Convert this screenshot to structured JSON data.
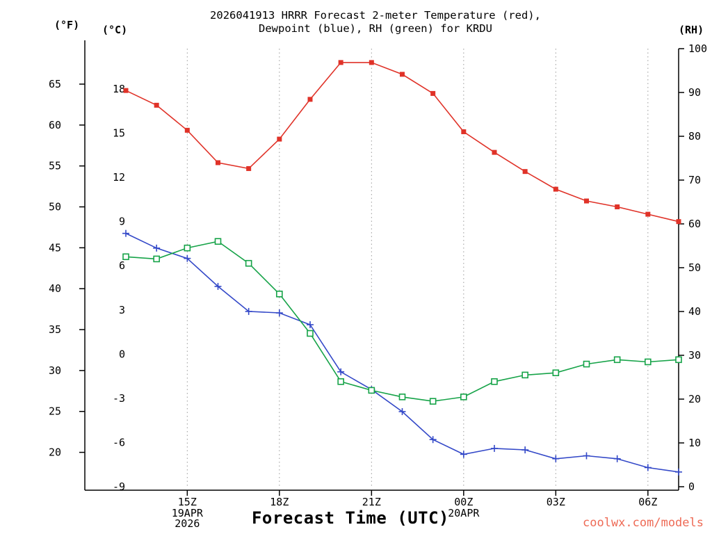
{
  "title": {
    "line1": "2026041913 HRRR Forecast 2-meter Temperature (red),",
    "line2": "Dewpoint (blue), RH (green) for KRDU"
  },
  "axes": {
    "left_outer_label": "(°F)",
    "left_inner_label": "(°C)",
    "right_label": "(RH)",
    "x_label": "Forecast Time (UTC)"
  },
  "watermark": "coolwx.com/models",
  "colors": {
    "temperature": "#e03228",
    "dewpoint": "#3348c8",
    "rh": "#16a348",
    "grid": "#999999",
    "axis": "#000000",
    "watermark": "#ee6a55"
  },
  "chart_data": {
    "type": "line",
    "title": "2026041913 HRRR Forecast 2-meter Temperature (red), Dewpoint (blue), RH (green) for KRDU",
    "station": "KRDU",
    "model_run": "2026041913",
    "xlabel": "Forecast Time (UTC)",
    "x_hours": [
      13,
      14,
      15,
      16,
      17,
      18,
      19,
      20,
      21,
      22,
      23,
      24,
      25,
      26,
      27,
      28,
      29,
      30,
      31
    ],
    "x_tick_hours": [
      15,
      18,
      21,
      24,
      27,
      30
    ],
    "x_tick_labels": [
      "15Z",
      "18Z",
      "21Z",
      "00Z",
      "03Z",
      "06Z"
    ],
    "x_date_labels": [
      {
        "hour": 15,
        "lines": [
          "19APR",
          "2026"
        ]
      },
      {
        "hour": 24,
        "lines": [
          "20APR"
        ]
      }
    ],
    "celsius_axis": {
      "min": -9,
      "max": 20.74,
      "ticks": [
        -9,
        -6,
        -3,
        0,
        3,
        6,
        9,
        12,
        15,
        18
      ]
    },
    "fahrenheit_ticks": [
      20,
      25,
      30,
      35,
      40,
      45,
      50,
      55,
      60,
      65
    ],
    "rh_axis": {
      "min": 0,
      "max": 100,
      "ticks": [
        0,
        10,
        20,
        30,
        40,
        50,
        60,
        70,
        80,
        90,
        100
      ]
    },
    "series": [
      {
        "key": "temperature",
        "name": "2-meter Temperature (°C)",
        "axis": "celsius",
        "marker": "filled-square",
        "values": [
          17.9,
          16.9,
          15.2,
          13.0,
          12.6,
          14.6,
          17.3,
          19.8,
          19.8,
          19.0,
          17.7,
          15.1,
          13.7,
          12.4,
          11.2,
          10.4,
          10.0,
          9.5,
          9.0
        ]
      },
      {
        "key": "dewpoint",
        "name": "Dewpoint (°C)",
        "axis": "celsius",
        "marker": "plus",
        "values": [
          8.2,
          7.2,
          6.5,
          4.6,
          2.9,
          2.8,
          2.0,
          -1.2,
          -2.4,
          -3.9,
          -5.8,
          -6.8,
          -6.4,
          -6.5,
          -7.1,
          -6.9,
          -7.1,
          -7.7,
          -8.0
        ]
      },
      {
        "key": "rh",
        "name": "Relative Humidity (%)",
        "axis": "rh",
        "marker": "open-square",
        "values": [
          52.5,
          52.0,
          54.5,
          56.0,
          51.0,
          44.0,
          35.0,
          24.0,
          22.0,
          20.5,
          19.5,
          20.5,
          24.0,
          25.5,
          26.0,
          28.0,
          29.0,
          28.5,
          29.0
        ]
      }
    ]
  }
}
